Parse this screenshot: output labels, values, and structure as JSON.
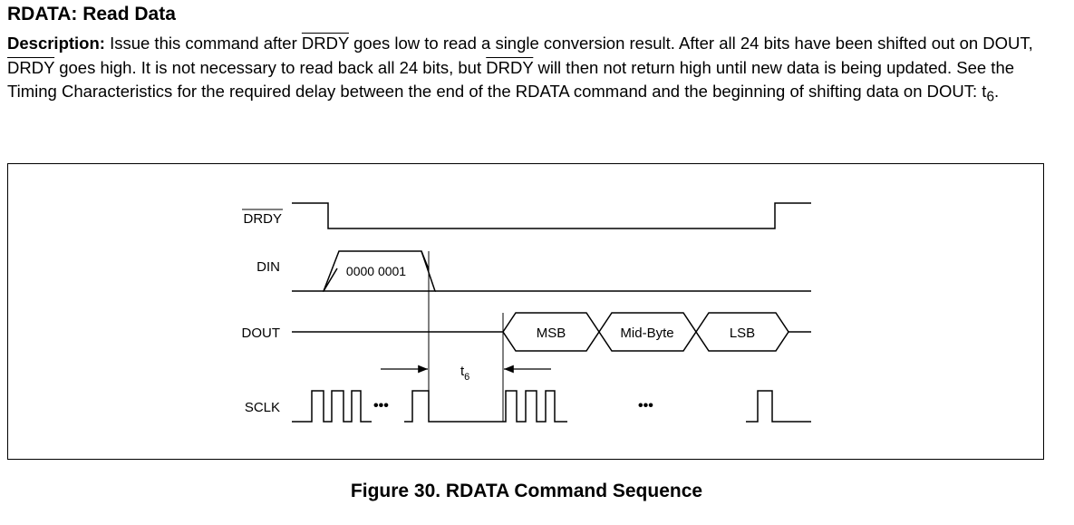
{
  "heading": "RDATA: Read Data",
  "description": {
    "label": "Description:",
    "t1": " Issue this command after ",
    "drdy": "DRDY",
    "t2": " goes low to read a single conversion result. After all 24 bits have been shifted out on DOUT, ",
    "t3": " goes high. It is not necessary to read back all 24 bits, but ",
    "t4": " will then not return high until new data is being updated. See the Timing Characteristics for the required delay between the end of the RDATA command and the beginning of shifting data on DOUT: t",
    "sub": "6",
    "t5": "."
  },
  "diagram": {
    "signals": {
      "drdy": "DRDY",
      "din": "DIN",
      "dout": "DOUT",
      "sclk": "SCLK"
    },
    "din_byte": "0000 0001",
    "dout_bytes": [
      "MSB",
      "Mid-Byte",
      "LSB"
    ],
    "timing": {
      "label": "t",
      "sub": "6"
    },
    "ellipsis": "•••"
  },
  "caption": "Figure 30. RDATA Command Sequence"
}
